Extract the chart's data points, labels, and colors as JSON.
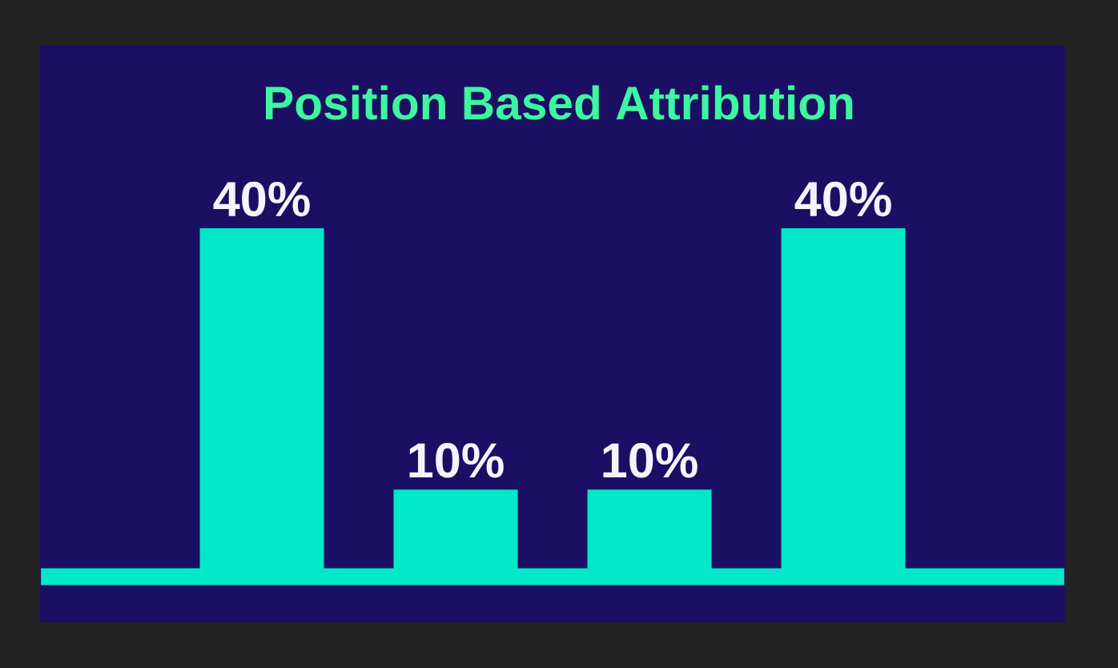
{
  "chart_data": {
    "type": "bar",
    "title": "Position Based Attribution",
    "categories": [
      null,
      null,
      null,
      null
    ],
    "values": [
      40,
      10,
      10,
      40
    ],
    "value_labels": [
      "40%",
      "10%",
      "10%",
      "40%"
    ],
    "color": "#00e8c8",
    "ref_lines": [
      {
        "axis": "y",
        "value": 0,
        "color": "#00e8c8"
      }
    ]
  }
}
